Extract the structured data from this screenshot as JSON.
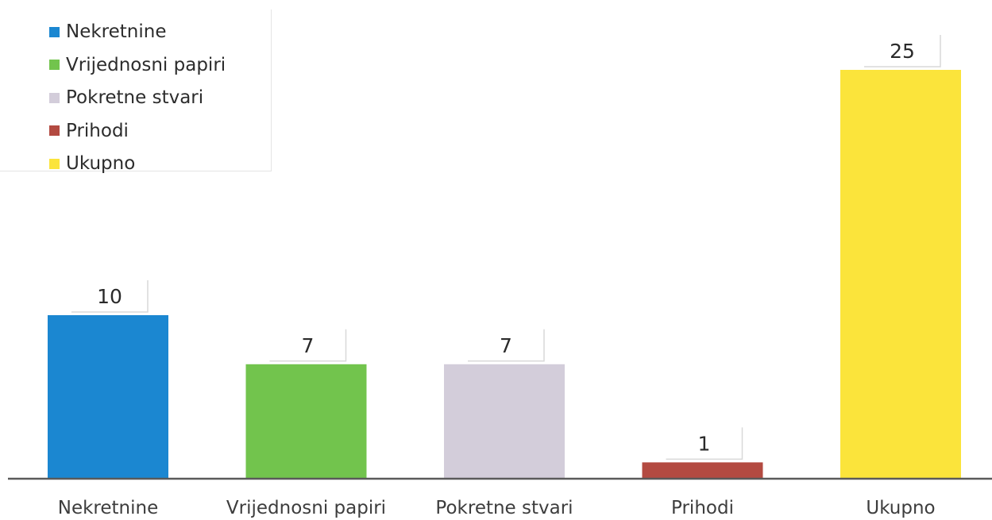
{
  "chart_data": {
    "type": "bar",
    "categories": [
      "Nekretnine",
      "Vrijednosni papiri",
      "Pokretne stvari",
      "Prihodi",
      "Ukupno"
    ],
    "values": [
      10,
      7,
      7,
      1,
      25
    ],
    "colors": [
      "#1b87d1",
      "#72c44d",
      "#d3cdda",
      "#b34a41",
      "#fbe43b"
    ],
    "legend": {
      "placement": "top-left",
      "entries": [
        "Nekretnine",
        "Vrijednosni papiri",
        "Pokretne stvari",
        "Prihodi",
        "Ukupno"
      ]
    },
    "data_labels": [
      "10",
      "7",
      "7",
      "1",
      "25"
    ],
    "ylim": [
      0,
      25
    ],
    "grid": false
  }
}
